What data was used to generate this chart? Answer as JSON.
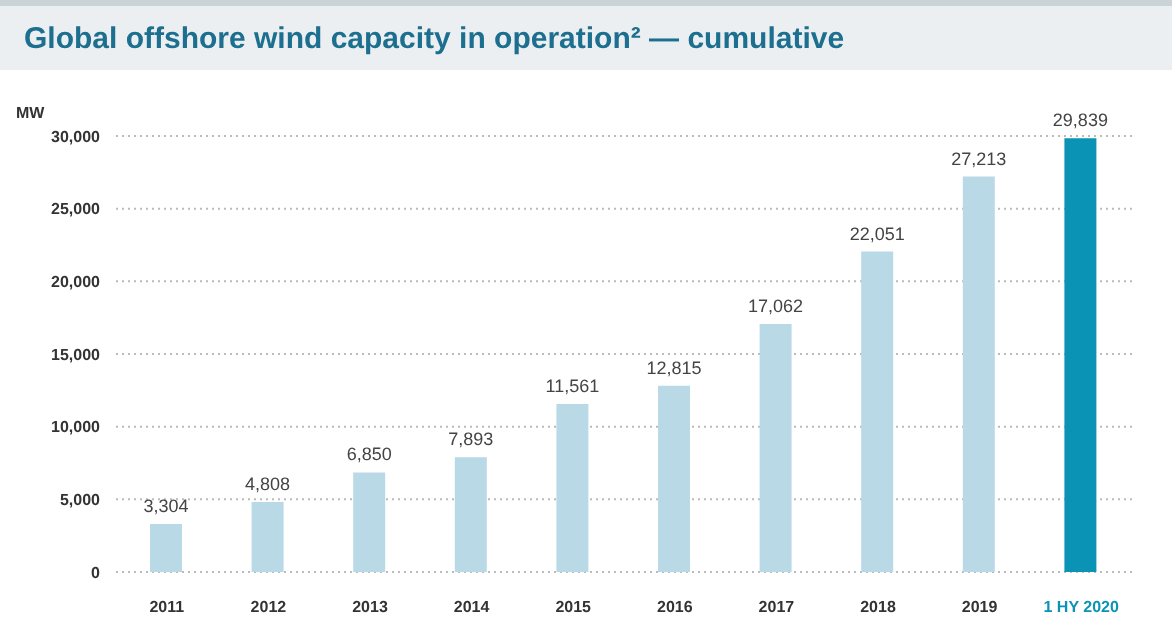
{
  "chart_data": {
    "type": "bar",
    "title": "Global offshore wind capacity in operation² — cumulative",
    "ylabel": "MW",
    "categories": [
      "2011",
      "2012",
      "2013",
      "2014",
      "2015",
      "2016",
      "2017",
      "2018",
      "2019",
      "1 HY 2020"
    ],
    "values": [
      3304,
      4808,
      6850,
      7893,
      11561,
      12815,
      17062,
      22051,
      27213,
      29839
    ],
    "colors": [
      "#b9d9e7",
      "#b9d9e7",
      "#b9d9e7",
      "#b9d9e7",
      "#b9d9e7",
      "#b9d9e7",
      "#b9d9e7",
      "#b9d9e7",
      "#b9d9e7",
      "#0a93b5"
    ],
    "value_labels": [
      "3,304",
      "4,808",
      "6,850",
      "7,893",
      "11,561",
      "12,815",
      "17,062",
      "22,051",
      "27,213",
      "29,839"
    ],
    "ylim": [
      0,
      30000
    ],
    "yticks": [
      {
        "value": 0,
        "label": "0"
      },
      {
        "value": 5000,
        "label": "5,000"
      },
      {
        "value": 10000,
        "label": "10,000"
      },
      {
        "value": 15000,
        "label": "15,000"
      },
      {
        "value": 20000,
        "label": "20,000"
      },
      {
        "value": 25000,
        "label": "25,000"
      },
      {
        "value": 30000,
        "label": "30,000"
      }
    ],
    "grid": "y"
  }
}
